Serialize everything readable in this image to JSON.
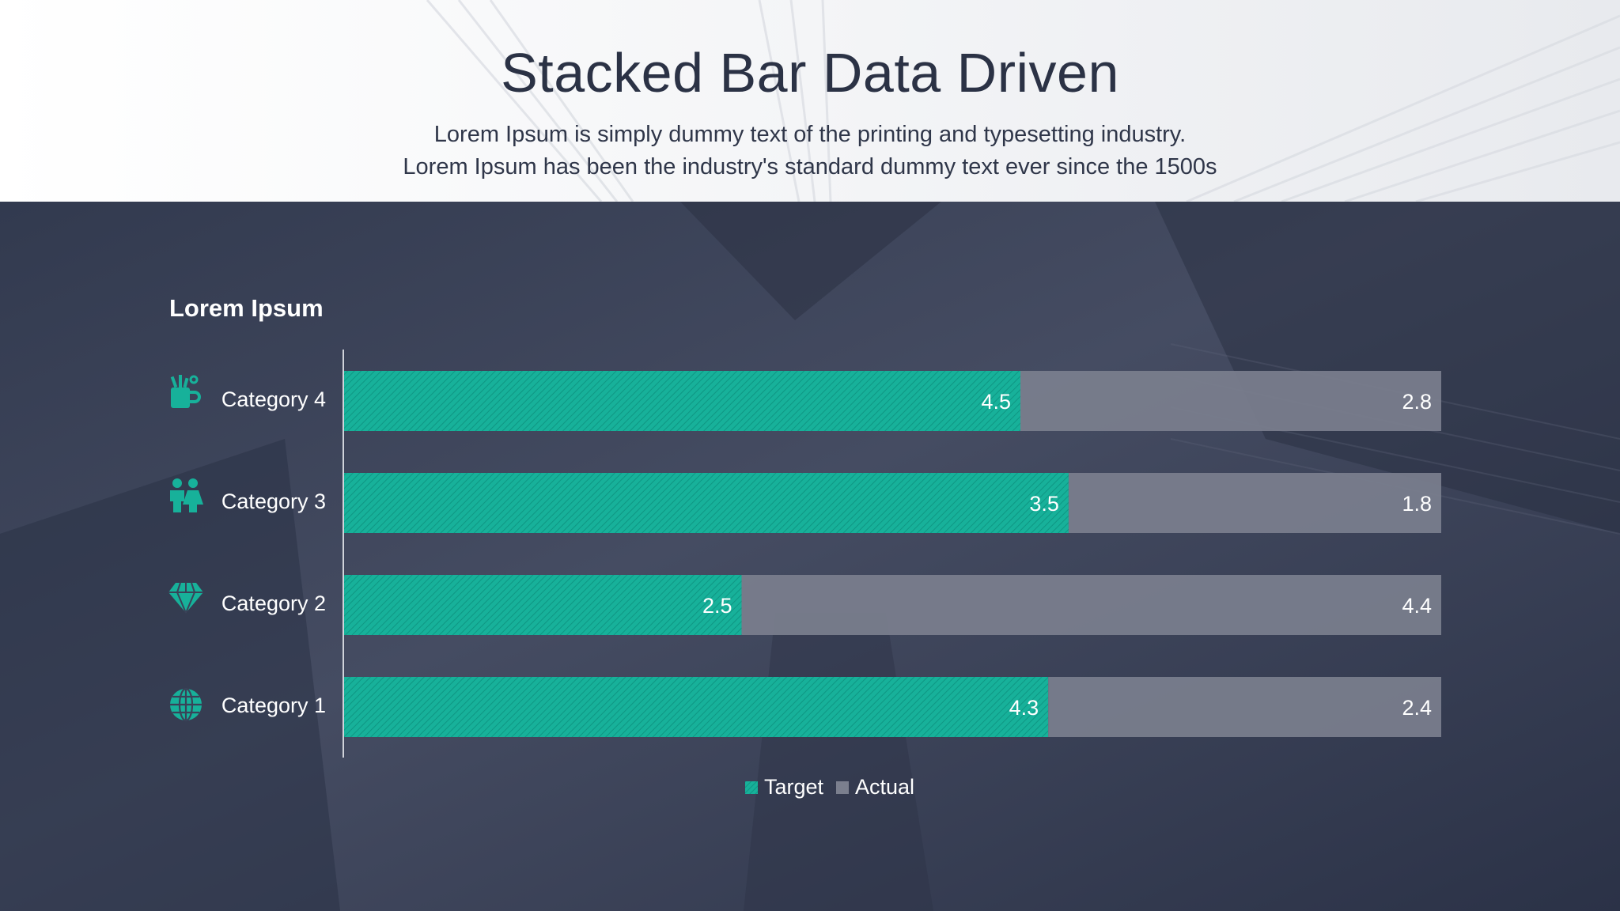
{
  "slide": {
    "title": "Stacked Bar Data Driven",
    "subtitle_line1": "Lorem Ipsum is simply dummy text of the printing and typesetting industry.",
    "subtitle_line2": "Lorem Ipsum has been the industry's standard dummy text ever since the 1500s"
  },
  "chart_data": {
    "type": "bar",
    "orientation": "horizontal",
    "stacked": true,
    "title": "Lorem Ipsum",
    "categories": [
      "Category 4",
      "Category 3",
      "Category 2",
      "Category 1"
    ],
    "category_icons": [
      "cup-pencils-icon",
      "people-icon",
      "diamond-icon",
      "globe-icon"
    ],
    "series": [
      {
        "name": "Target",
        "values": [
          4.5,
          3.5,
          2.5,
          4.3
        ],
        "color": "#17b19a"
      },
      {
        "name": "Actual",
        "values": [
          2.8,
          1.8,
          4.4,
          2.4
        ],
        "color": "#7b7f8e"
      }
    ],
    "data_labels": true,
    "legend_position": "bottom",
    "grid": false
  },
  "colors": {
    "accent": "#17b19a",
    "actual": "#7b7f8e",
    "title_text": "#2b3245",
    "dark_bg": "#3a4258"
  }
}
